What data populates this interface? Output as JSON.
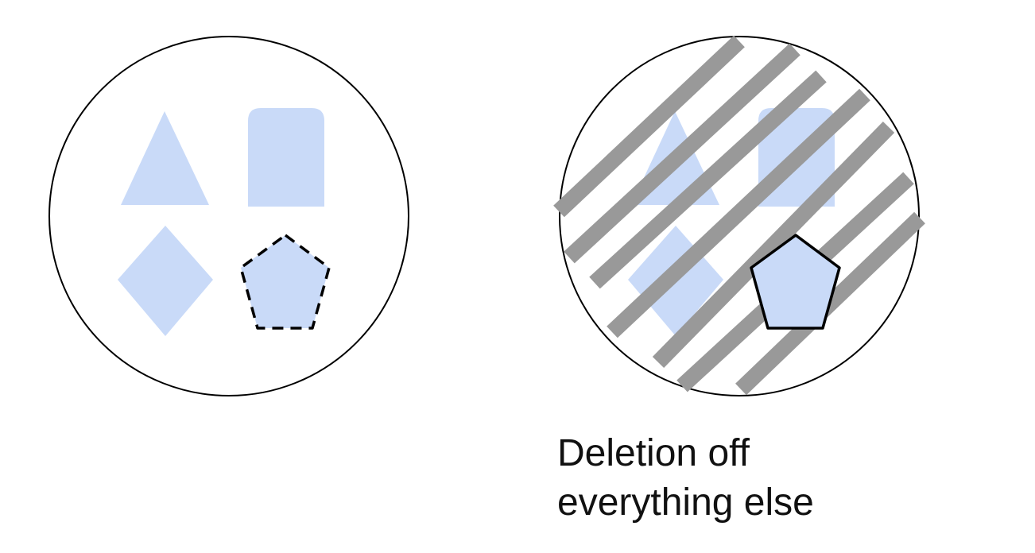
{
  "caption": {
    "line1": "Deletion off",
    "line2": "everything else"
  },
  "colors": {
    "shape_fill": "#c9daf8",
    "outline": "#000000",
    "stripe": "#999999"
  },
  "left_panel": {
    "shapes": [
      "triangle",
      "rounded-rectangle",
      "diamond",
      "pentagon"
    ],
    "selected_shape": "pentagon",
    "selected_outline_style": "dashed"
  },
  "right_panel": {
    "shapes": [
      "triangle",
      "rounded-rectangle",
      "diamond",
      "pentagon"
    ],
    "kept_shape": "pentagon",
    "kept_outline_style": "solid",
    "overlay": "diagonal-stripes"
  }
}
